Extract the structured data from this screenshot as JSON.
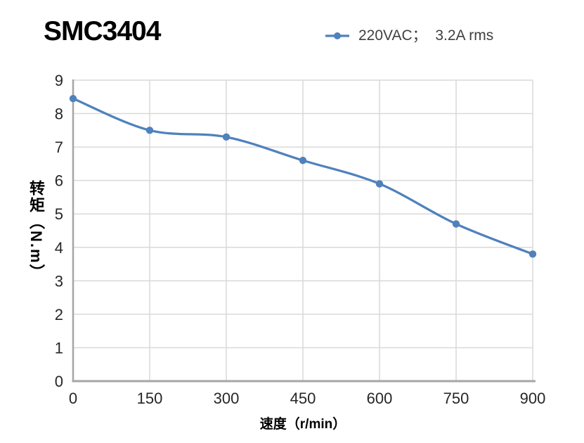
{
  "header": {
    "title": "SMC3404"
  },
  "legend": {
    "label": "220VAC；  3.2A rms"
  },
  "chart_data": {
    "type": "line",
    "title": "SMC3404",
    "series": [
      {
        "name": "220VAC；  3.2A rms",
        "x": [
          0,
          150,
          300,
          450,
          600,
          750,
          900
        ],
        "values": [
          8.45,
          7.5,
          7.3,
          6.6,
          5.9,
          4.7,
          3.8
        ],
        "color": "#4F81BD",
        "marker": "circle",
        "smooth": true
      }
    ],
    "xlabel": "速度（r/min）",
    "ylabel": "转矩（N.m）",
    "xlim": [
      0,
      900
    ],
    "ylim": [
      0,
      9
    ],
    "xticks": [
      0,
      150,
      300,
      450,
      600,
      750,
      900
    ],
    "yticks": [
      0,
      1,
      2,
      3,
      4,
      5,
      6,
      7,
      8,
      9
    ],
    "grid": true,
    "legend_position": "top-right",
    "styles": {
      "grid_color": "#D9D9D9",
      "axis_color": "#A6A6A6",
      "tick_label_color": "#262626",
      "legend_text_color": "#3F3F3F",
      "title_color": "#000000",
      "background": "#FFFFFF"
    }
  }
}
